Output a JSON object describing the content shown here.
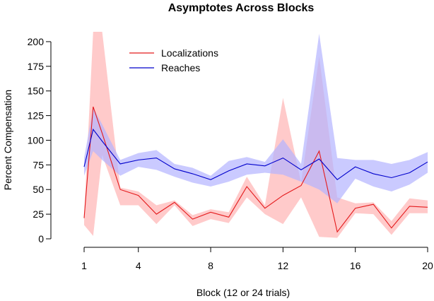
{
  "chart_data": {
    "type": "line",
    "title": "Asymptotes Across Blocks",
    "xlabel": "Block (12 or 24 trials)",
    "ylabel": "Percent Compensation",
    "xlim": [
      1,
      20
    ],
    "ylim": [
      0,
      210
    ],
    "xticks": [
      1,
      4,
      8,
      12,
      16,
      20
    ],
    "yticks": [
      0,
      25,
      50,
      75,
      100,
      125,
      150,
      175,
      200
    ],
    "grid": false,
    "legend": "top-left",
    "x": [
      1,
      1.5,
      2,
      3,
      4,
      5,
      6,
      7,
      8,
      9,
      10,
      11,
      12,
      13,
      14,
      15,
      16,
      17,
      18,
      19,
      20
    ],
    "series": [
      {
        "name": "Localizations",
        "color": "#e41a1c",
        "band_color": "#ffb3b3",
        "values": [
          21,
          134,
          107,
          50,
          44,
          25,
          37,
          20,
          27,
          22,
          53,
          31,
          44,
          54,
          89,
          7,
          31,
          35,
          11,
          33,
          32
        ],
        "lower": [
          14,
          3,
          85,
          34,
          34,
          15,
          34,
          13,
          20,
          16,
          42,
          25,
          15,
          42,
          2,
          1,
          26,
          25,
          4,
          26,
          26
        ],
        "upper": [
          23,
          210,
          210,
          52,
          48,
          34,
          39,
          24,
          30,
          27,
          63,
          34,
          143,
          57,
          185,
          42,
          36,
          37,
          18,
          41,
          39
        ]
      },
      {
        "name": "Reaches",
        "color": "#0000cc",
        "band_color": "#b3b3ff",
        "values": [
          73,
          111,
          99,
          76,
          80,
          82,
          71,
          66,
          60,
          69,
          76,
          74,
          82,
          70,
          81,
          60,
          73,
          66,
          62,
          67,
          78
        ],
        "lower": [
          64,
          89,
          80,
          64,
          73,
          70,
          63,
          57,
          53,
          58,
          65,
          67,
          65,
          58,
          50,
          36,
          61,
          53,
          48,
          55,
          67
        ],
        "upper": [
          82,
          133,
          116,
          80,
          87,
          90,
          76,
          72,
          64,
          79,
          83,
          78,
          101,
          76,
          208,
          82,
          80,
          80,
          76,
          80,
          88
        ]
      }
    ]
  }
}
